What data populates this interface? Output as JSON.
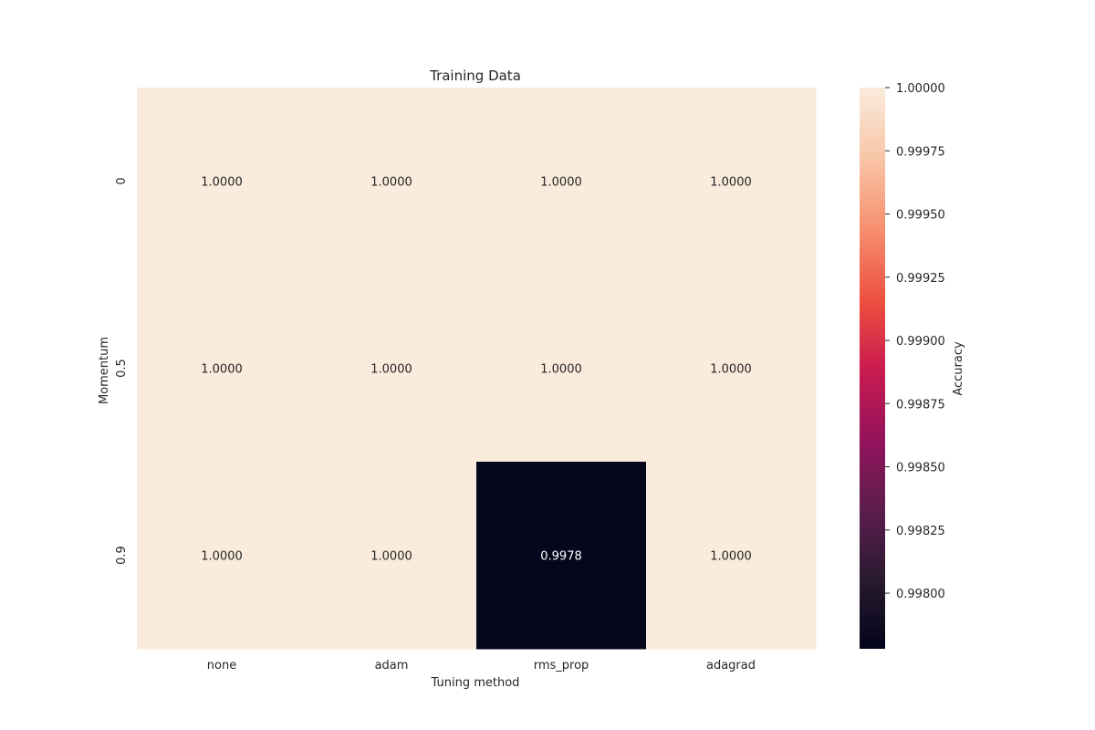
{
  "chart_data": {
    "type": "heatmap",
    "title": "Training Data",
    "xlabel": "Tuning method",
    "ylabel": "Momentum",
    "x_categories": [
      "none",
      "adam",
      "rms_prop",
      "adagrad"
    ],
    "y_categories": [
      "0",
      "0.5",
      "0.9"
    ],
    "values": [
      [
        1.0,
        1.0,
        1.0,
        1.0
      ],
      [
        1.0,
        1.0,
        1.0,
        1.0
      ],
      [
        1.0,
        1.0,
        0.9978,
        1.0
      ]
    ],
    "cell_labels": [
      [
        "1.0000",
        "1.0000",
        "1.0000",
        "1.0000"
      ],
      [
        "1.0000",
        "1.0000",
        "1.0000",
        "1.0000"
      ],
      [
        "1.0000",
        "1.0000",
        "0.9978",
        "1.0000"
      ]
    ],
    "colorbar": {
      "label": "Accuracy",
      "min": 0.99778,
      "max": 1.0,
      "ticks": [
        1.0,
        0.99975,
        0.9995,
        0.99925,
        0.999,
        0.99875,
        0.9985,
        0.99825,
        0.998
      ],
      "tick_labels": [
        "1.00000",
        "0.99975",
        "0.99950",
        "0.99925",
        "0.99900",
        "0.99875",
        "0.99850",
        "0.99825",
        "0.99800"
      ],
      "colormap": "rocket",
      "color_low": "#03051a",
      "color_high": "#faebdd"
    }
  }
}
